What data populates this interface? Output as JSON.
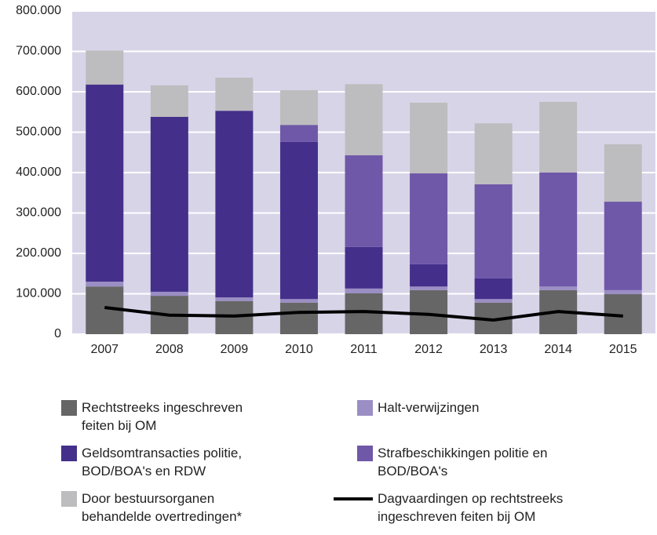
{
  "chart_data": {
    "type": "bar",
    "stacked": true,
    "categories": [
      "2007",
      "2008",
      "2009",
      "2010",
      "2011",
      "2012",
      "2013",
      "2014",
      "2015"
    ],
    "series": [
      {
        "name": "Rechtstreeks ingeschreven feiten bij OM",
        "color": "#666666",
        "values": [
          118000,
          95000,
          82000,
          78000,
          101000,
          109000,
          78000,
          109000,
          99000
        ]
      },
      {
        "name": "Halt-verwijzingen",
        "color": "#9b8ec4",
        "values": [
          12000,
          10000,
          9000,
          9000,
          12000,
          9000,
          9000,
          9000,
          10000
        ]
      },
      {
        "name": "Geldsomtransacties politie, BOD/BOA's en RDW",
        "color": "#44308a",
        "values": [
          488000,
          433000,
          462000,
          389000,
          103000,
          55000,
          51000,
          0,
          0
        ]
      },
      {
        "name": "Strafbeschikkingen politie en BOD/BOA's",
        "color": "#6f58a8",
        "values": [
          0,
          0,
          0,
          42000,
          227000,
          225000,
          233000,
          282000,
          219000
        ]
      },
      {
        "name": "Door bestuursorganen behandelde overtredingen*",
        "color": "#bdbdbf",
        "values": [
          84000,
          78000,
          82000,
          86000,
          176000,
          175000,
          151000,
          175000,
          142000
        ]
      },
      {
        "name": "Dagvaardingen op rechtstreeks ingeschreven feiten bij OM",
        "color": "#000000",
        "type": "line",
        "values": [
          66000,
          47000,
          45000,
          54000,
          56000,
          49000,
          35000,
          56000,
          45000
        ]
      }
    ],
    "ylim": [
      0,
      800000
    ],
    "yticks": [
      0,
      {
        "value": 100000,
        "label": "100.000"
      },
      {
        "value": 200000,
        "label": "200.000"
      },
      {
        "value": 300000,
        "label": "300.000"
      },
      {
        "value": 400000,
        "label": "400.000"
      },
      {
        "value": 500000,
        "label": "500.000"
      },
      {
        "value": 600000,
        "label": "600.000"
      },
      {
        "value": 700000,
        "label": "700.000"
      },
      {
        "value": 800000,
        "label": "800.000"
      }
    ],
    "grid": true,
    "background": "#d8d4e8"
  }
}
